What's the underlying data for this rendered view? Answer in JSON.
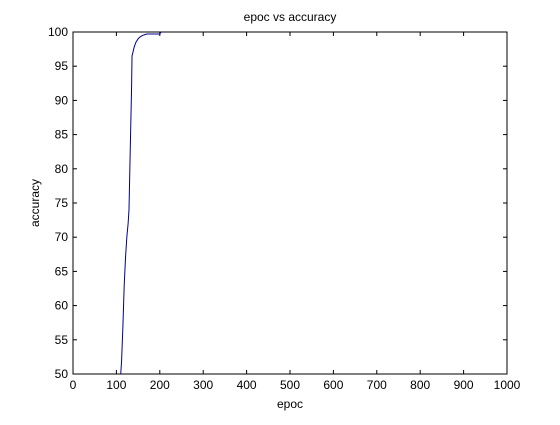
{
  "chart_data": {
    "type": "line",
    "title": "epoc vs accuracy",
    "xlabel": "epoc",
    "ylabel": "accuracy",
    "xlim": [
      0,
      1000
    ],
    "ylim": [
      50,
      100
    ],
    "xticks": [
      0,
      100,
      200,
      300,
      400,
      500,
      600,
      700,
      800,
      900,
      1000
    ],
    "yticks": [
      50,
      55,
      60,
      65,
      70,
      75,
      80,
      85,
      90,
      95,
      100
    ],
    "grid": false,
    "series": [
      {
        "color": "#00008b",
        "x": [
          110,
          112,
          115,
          118,
          121,
          124,
          127,
          129,
          131,
          133,
          135,
          136,
          138,
          141,
          145,
          150,
          155,
          160,
          165,
          170,
          175,
          180,
          185,
          190,
          195,
          200,
          203
        ],
        "y": [
          50,
          52,
          57,
          63,
          67,
          70,
          72,
          74,
          80,
          86,
          92,
          96.5,
          97,
          97.8,
          98.5,
          99,
          99.3,
          99.5,
          99.6,
          99.7,
          99.7,
          99.7,
          99.7,
          99.7,
          99.7,
          99.7,
          100
        ]
      }
    ]
  }
}
